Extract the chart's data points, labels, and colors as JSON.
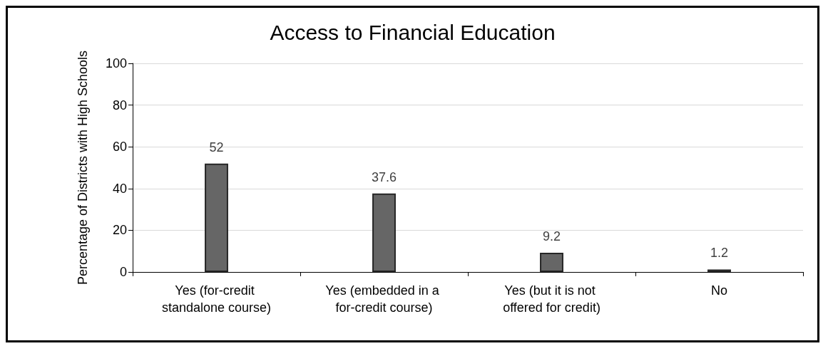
{
  "chart_data": {
    "type": "bar",
    "title": "Access to Financial Education",
    "ylabel": "Percentage of Districts with High Schools",
    "categories": [
      "Yes (for-credit standalone course)",
      "Yes (embedded in a for-credit course)",
      "Yes (but it is not offered for credit)",
      "No"
    ],
    "values": [
      52,
      37.6,
      9.2,
      1.2
    ],
    "color": "#666666",
    "ylim": [
      0,
      100
    ],
    "yticks": [
      0,
      20,
      40,
      60,
      80,
      100
    ],
    "grid": "y",
    "data_labels": true
  }
}
